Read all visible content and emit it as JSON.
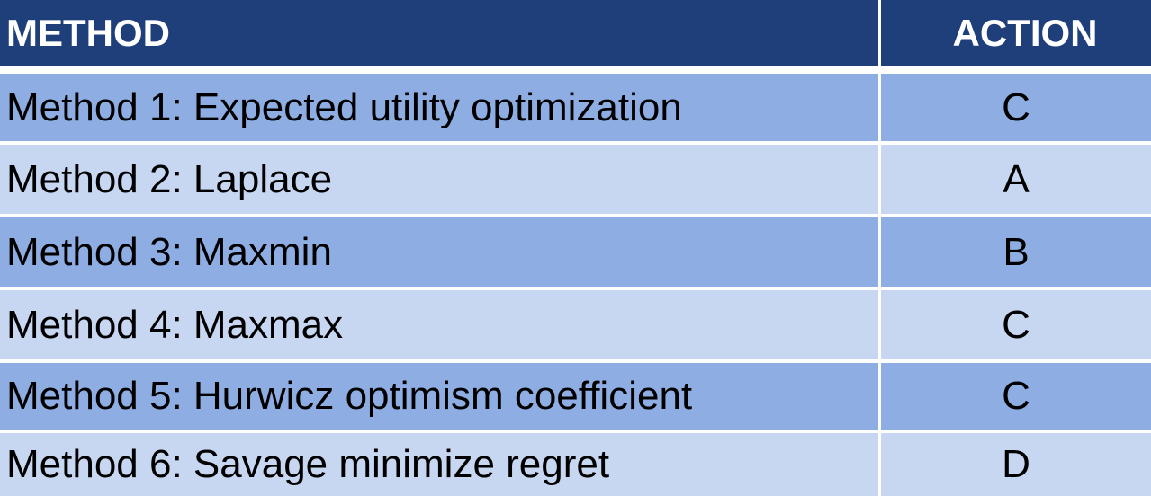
{
  "table": {
    "headers": [
      "METHOD",
      "ACTION"
    ],
    "rows": [
      {
        "method": "Method 1: Expected utility optimization",
        "action": "C"
      },
      {
        "method": "Method 2: Laplace",
        "action": "A"
      },
      {
        "method": "Method 3: Maxmin",
        "action": "B"
      },
      {
        "method": "Method 4: Maxmax",
        "action": "C"
      },
      {
        "method": "Method 5: Hurwicz optimism coefficient",
        "action": "C"
      },
      {
        "method": "Method 6: Savage minimize regret",
        "action": "D"
      }
    ]
  },
  "colors": {
    "header_bg": "#1f3f7a",
    "row_dark": "#8eaee3",
    "row_light": "#c7d6f1"
  }
}
